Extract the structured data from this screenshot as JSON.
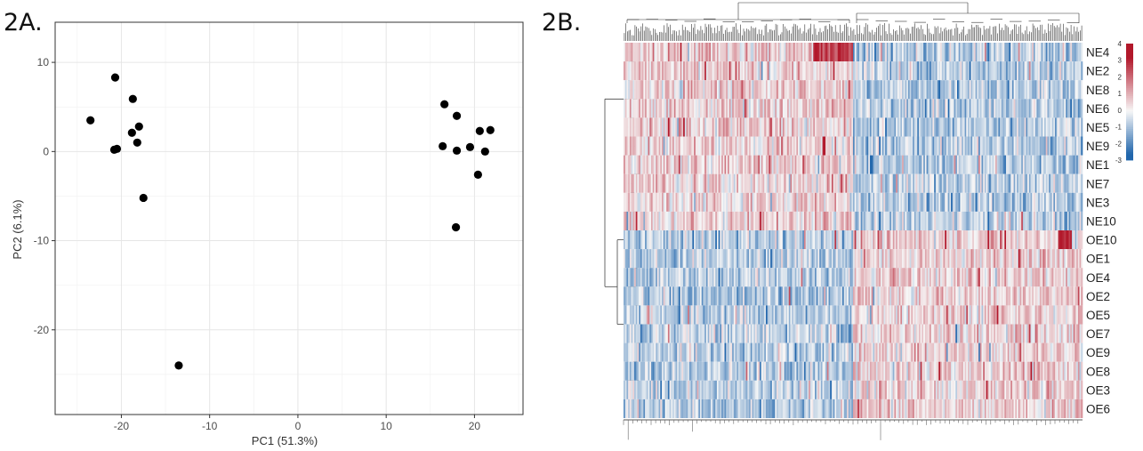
{
  "panels": {
    "a_label": "2A.",
    "b_label": "2B."
  },
  "chart_data": [
    {
      "type": "scatter",
      "title": "",
      "xlabel": "PC1 (51.3%)",
      "ylabel": "PC2 (6.1%)",
      "xlim": [
        -27.5,
        25.5
      ],
      "ylim": [
        -29.5,
        14.5
      ],
      "x_ticks": [
        -20,
        -10,
        0,
        10,
        20
      ],
      "y_ticks": [
        -20,
        -10,
        0,
        10
      ],
      "grid": true,
      "point_color": "#000000",
      "series": [
        {
          "x": [
            -23.5,
            -20.7,
            -18.7,
            -18.0,
            -18.8,
            -18.2,
            -20.5,
            -20.8,
            -17.5,
            -13.5,
            16.6,
            18.0,
            16.4,
            19.5,
            18.0,
            20.6,
            21.8,
            21.2,
            20.4,
            17.9
          ],
          "y": [
            3.5,
            8.3,
            5.9,
            2.8,
            2.1,
            1.0,
            0.3,
            0.2,
            -5.2,
            -24.0,
            5.3,
            4.0,
            0.6,
            0.5,
            0.1,
            2.3,
            2.4,
            0.0,
            -2.6,
            -8.5
          ]
        }
      ]
    },
    {
      "type": "heatmap",
      "rows": [
        "NE4",
        "NE2",
        "NE8",
        "NE6",
        "NE5",
        "NE9",
        "NE1",
        "NE7",
        "NE3",
        "NE10",
        "OE10",
        "OE1",
        "OE4",
        "OE2",
        "OE5",
        "OE7",
        "OE9",
        "OE8",
        "OE3",
        "OE6"
      ],
      "legend_ticks": [
        4,
        3,
        2,
        1,
        0,
        -1,
        -2,
        -3
      ],
      "value_range": [
        -3,
        4
      ],
      "colors": {
        "high": "#b2182b",
        "mid": "#f7f7f7",
        "low": "#2166ac"
      },
      "column_clusters": 2,
      "row_clusters": [
        "NE",
        "OE"
      ]
    }
  ]
}
